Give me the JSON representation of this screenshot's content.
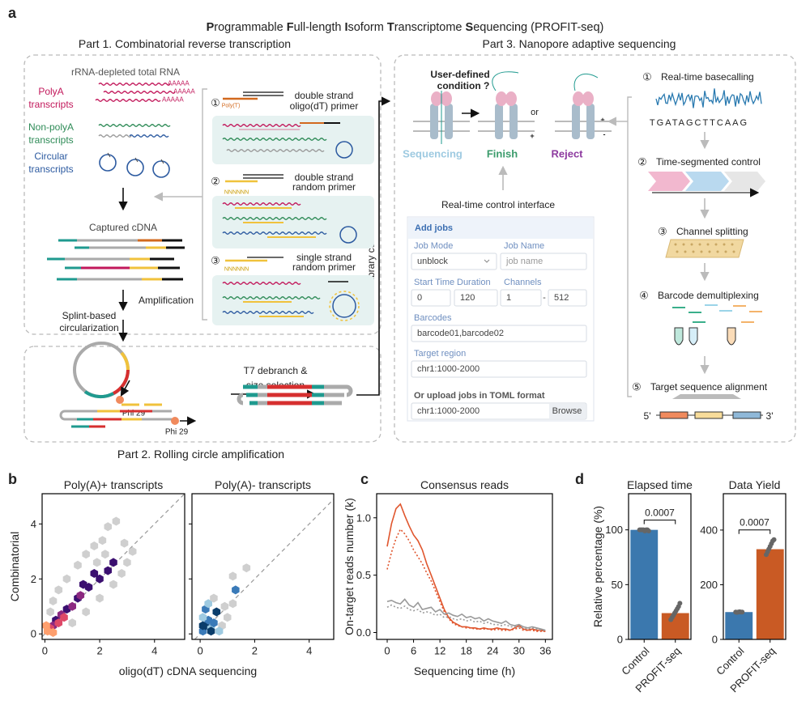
{
  "figure": {
    "panel_labels": [
      "a",
      "b",
      "c",
      "d"
    ],
    "title": [
      "P",
      "rogrammable ",
      "F",
      "ull-length ",
      "I",
      "soform ",
      "T",
      "ranscriptome ",
      "S",
      "equencing (PROFIT-seq)"
    ],
    "part1": {
      "title": "Part 1. Combinatorial reverse transcription",
      "source": "rRNA-depleted total RNA",
      "polya": [
        "PolyA",
        "transcripts"
      ],
      "nonpolya": [
        "Non-polyA",
        "transcripts"
      ],
      "circular": [
        "Circular",
        "transcripts"
      ],
      "tail": "AAAAA",
      "captured": "Captured cDNA",
      "amplification": "Amplification",
      "circularization": [
        "Splint-based",
        "circularization"
      ],
      "primers": [
        {
          "number": "①",
          "label": [
            "double strand",
            "oligo(dT) primer"
          ],
          "tag": "Poly(T)"
        },
        {
          "number": "②",
          "label": [
            "double strand",
            "random primer"
          ],
          "tag": "NNNNNN"
        },
        {
          "number": "③",
          "label": [
            "single strand",
            "random primer"
          ],
          "tag": "NNNNNN"
        }
      ]
    },
    "part2": {
      "title": "Part 2. Rolling circle amplification",
      "step": [
        "T7 debranch &",
        "size selection"
      ],
      "enzyme": "Phi 29"
    },
    "library": "Library construction",
    "part3": {
      "title": "Part 3. Nanopore adaptive sequencing",
      "question": [
        "User-defined",
        "condition ?"
      ],
      "or": "or",
      "charges": [
        "-",
        "+"
      ],
      "states": [
        "Sequencing",
        "Finish",
        "Reject"
      ],
      "interface_title": "Real-time control interface",
      "form": {
        "header": "Add jobs",
        "job_mode": {
          "label": "Job Mode",
          "value": "unblock"
        },
        "job_name": {
          "label": "Job Name",
          "placeholder": "job name"
        },
        "start_time": {
          "label": "Start Time",
          "value": "0"
        },
        "duration": {
          "label": "Duration",
          "value": "120"
        },
        "channels": {
          "label": "Channels",
          "from": "1",
          "separator": "-",
          "to": "512"
        },
        "barcodes": {
          "label": "Barcodes",
          "value": "barcode01,barcode02"
        },
        "target_region": {
          "label": "Target region",
          "value": "chr1:1000-2000"
        },
        "upload": {
          "label": "Or upload jobs in TOML format",
          "value": "chr1:1000-2000",
          "button": "Browse"
        }
      },
      "steps": [
        {
          "number": "①",
          "label": "Real-time basecalling"
        },
        {
          "number": "②",
          "label": "Time-segmented control"
        },
        {
          "number": "③",
          "label": "Channel splitting"
        },
        {
          "number": "④",
          "label": "Barcode demultiplexing"
        },
        {
          "number": "⑤",
          "label": "Target sequence alignment"
        }
      ],
      "sequence": "TGATAGCTTCAAG",
      "ends": [
        "5'",
        "3'"
      ]
    }
  },
  "chart_data": [
    {
      "type": "hexbin",
      "title": "Poly(A)+ transcripts",
      "x_label": "oligo(dT) cDNA sequencing",
      "y_label": "Combinatorial",
      "xlim": [
        -0.1,
        5.1
      ],
      "ylim": [
        -0.2,
        5.1
      ],
      "xticks": [
        0,
        2,
        4
      ],
      "yticks": [
        0,
        2,
        4
      ],
      "diagonal": true,
      "cmap": [
        "#cfcfcf",
        "#3b0f70",
        "#8c2981",
        "#de4968",
        "#fe9f6d"
      ],
      "x": [
        0.3,
        0.5,
        0.8,
        1.2,
        1.5,
        1.8,
        2.1,
        2.3,
        2.6,
        1.0,
        1.5,
        2.0,
        2.5,
        2.8,
        3.0,
        2.2,
        0.2,
        1.9,
        2.9,
        3.2,
        0.4,
        0.8,
        1.2,
        1.6,
        2.0,
        2.3,
        2.5,
        1.4,
        1.8,
        0.3,
        0.6,
        1.0,
        1.3,
        0.2,
        0.5,
        0.7,
        0.1,
        0.3,
        0.05
      ],
      "y": [
        1.2,
        1.6,
        2.0,
        2.5,
        2.9,
        3.2,
        3.4,
        3.9,
        4.1,
        0.4,
        0.8,
        1.3,
        1.8,
        2.2,
        2.6,
        2.9,
        0.8,
        2.6,
        3.3,
        3.0,
        0.5,
        0.9,
        1.3,
        1.7,
        2.0,
        2.3,
        2.6,
        1.8,
        2.2,
        0.3,
        0.7,
        1.0,
        1.4,
        0.2,
        0.4,
        0.6,
        0.1,
        0.05,
        0.3
      ],
      "density": [
        1,
        1,
        1,
        1,
        1,
        1,
        1,
        1,
        1,
        1,
        1,
        1,
        1,
        1,
        1,
        1,
        1,
        1,
        1,
        1,
        2,
        2,
        2,
        2,
        2,
        2,
        2,
        2,
        2,
        3,
        3,
        3,
        3,
        4,
        4,
        4,
        5,
        5,
        5
      ]
    },
    {
      "type": "hexbin",
      "title": "Poly(A)- transcripts",
      "xlim": [
        -0.3,
        4.9
      ],
      "ylim": [
        -0.2,
        5.1
      ],
      "xticks": [
        0,
        2,
        4
      ],
      "yticks": [
        0,
        2,
        4
      ],
      "diagonal": true,
      "sharey": true,
      "cmap": [
        "#cfcfcf",
        "#9ecae1",
        "#3a7ab8",
        "#0b3d6b"
      ],
      "x": [
        0.1,
        0.2,
        0.3,
        0.1,
        0.2,
        0.4,
        0.5,
        0.6,
        0.3,
        0.8,
        1.0,
        1.2,
        1.3,
        1.2,
        0.9,
        1.7,
        0.4,
        0.7,
        0.1,
        0.5
      ],
      "y": [
        0.1,
        0.3,
        0.5,
        0.6,
        0.9,
        0.2,
        0.4,
        0.8,
        1.1,
        0.3,
        0.6,
        1.1,
        1.6,
        2.1,
        1.0,
        2.4,
        0.1,
        0.1,
        0.3,
        1.3
      ],
      "density": [
        3,
        4,
        3,
        2,
        3,
        2,
        3,
        4,
        2,
        1,
        1,
        1,
        3,
        1,
        1,
        1,
        4,
        2,
        4,
        1
      ]
    },
    {
      "type": "line",
      "title": "Consensus reads",
      "x_label": "Sequencing time (h)",
      "y_label": "On-target reads number (k)",
      "xlim": [
        -2.4,
        37.6
      ],
      "ylim": [
        -0.06,
        1.21
      ],
      "xticks": [
        0,
        6,
        12,
        18,
        24,
        30,
        36
      ],
      "yticks": [
        {
          "value": 0,
          "label": "0.0"
        },
        {
          "value": 0.5,
          "label": "0.5"
        },
        {
          "value": 1,
          "label": "1.0"
        }
      ],
      "x": [
        0,
        1,
        2,
        3,
        4,
        5,
        6,
        7,
        8,
        9,
        10,
        11,
        12,
        13,
        14,
        15,
        16,
        17,
        18,
        19,
        20,
        21,
        22,
        23,
        24,
        25,
        26,
        27,
        28,
        29,
        30,
        31,
        32,
        33,
        34,
        35,
        36
      ],
      "series": [
        {
          "color": "#e0562e",
          "style": "solid",
          "values": [
            0.75,
            0.95,
            1.08,
            1.12,
            1.02,
            0.93,
            0.85,
            0.8,
            0.72,
            0.6,
            0.5,
            0.4,
            0.3,
            0.2,
            0.13,
            0.09,
            0.07,
            0.05,
            0.05,
            0.04,
            0.04,
            0.03,
            0.04,
            0.03,
            0.03,
            0.04,
            0.03,
            0.03,
            0.02,
            0.04,
            0.06,
            0.03,
            0.02,
            0.03,
            0.02,
            0.02,
            0.01
          ]
        },
        {
          "color": "#e0562e",
          "style": "dotted",
          "values": [
            0.55,
            0.7,
            0.82,
            0.9,
            0.86,
            0.8,
            0.72,
            0.66,
            0.6,
            0.52,
            0.45,
            0.36,
            0.27,
            0.18,
            0.12,
            0.08,
            0.06,
            0.05,
            0.04,
            0.04,
            0.03,
            0.03,
            0.03,
            0.03,
            0.02,
            0.03,
            0.02,
            0.02,
            0.02,
            0.03,
            0.04,
            0.02,
            0.02,
            0.02,
            0.01,
            0.01,
            0.01
          ]
        },
        {
          "color": "#9a9a9a",
          "style": "solid",
          "values": [
            0.27,
            0.28,
            0.26,
            0.25,
            0.29,
            0.24,
            0.22,
            0.26,
            0.2,
            0.21,
            0.22,
            0.18,
            0.2,
            0.16,
            0.17,
            0.15,
            0.14,
            0.16,
            0.13,
            0.14,
            0.12,
            0.13,
            0.1,
            0.12,
            0.1,
            0.09,
            0.08,
            0.1,
            0.07,
            0.06,
            0.07,
            0.05,
            0.04,
            0.05,
            0.04,
            0.03,
            0.02
          ]
        },
        {
          "color": "#9a9a9a",
          "style": "dotted",
          "values": [
            0.22,
            0.24,
            0.22,
            0.21,
            0.23,
            0.2,
            0.19,
            0.2,
            0.17,
            0.18,
            0.17,
            0.15,
            0.16,
            0.13,
            0.14,
            0.12,
            0.11,
            0.12,
            0.1,
            0.11,
            0.09,
            0.1,
            0.08,
            0.09,
            0.07,
            0.07,
            0.06,
            0.07,
            0.05,
            0.05,
            0.05,
            0.04,
            0.03,
            0.04,
            0.03,
            0.02,
            0.02
          ]
        }
      ]
    },
    {
      "type": "bar",
      "title": "Elapsed time",
      "y_label": "Relative percentage (%)",
      "categories": [
        "Control",
        "PROFIT-seq"
      ],
      "values": [
        100,
        24
      ],
      "colors": [
        "#3b78ae",
        "#c95a24"
      ],
      "points": [
        [
          100,
          100,
          100,
          100,
          99,
          100,
          100,
          99
        ],
        [
          18,
          20,
          22,
          24,
          26,
          28,
          30,
          33
        ]
      ],
      "ylim": [
        0,
        133
      ],
      "yticks": [
        0,
        50,
        100
      ],
      "significance": "0.0007"
    },
    {
      "type": "bar",
      "title": "Data Yield",
      "categories": [
        "Control",
        "PROFIT-seq"
      ],
      "values": [
        100,
        330
      ],
      "colors": [
        "#3b78ae",
        "#c95a24"
      ],
      "points": [
        [
          100,
          99,
          100,
          101,
          100,
          100
        ],
        [
          310,
          320,
          330,
          340,
          350,
          360,
          365
        ]
      ],
      "ylim": [
        0,
        533
      ],
      "yticks": [
        0,
        200,
        400
      ],
      "significance": "0.0007"
    }
  ]
}
